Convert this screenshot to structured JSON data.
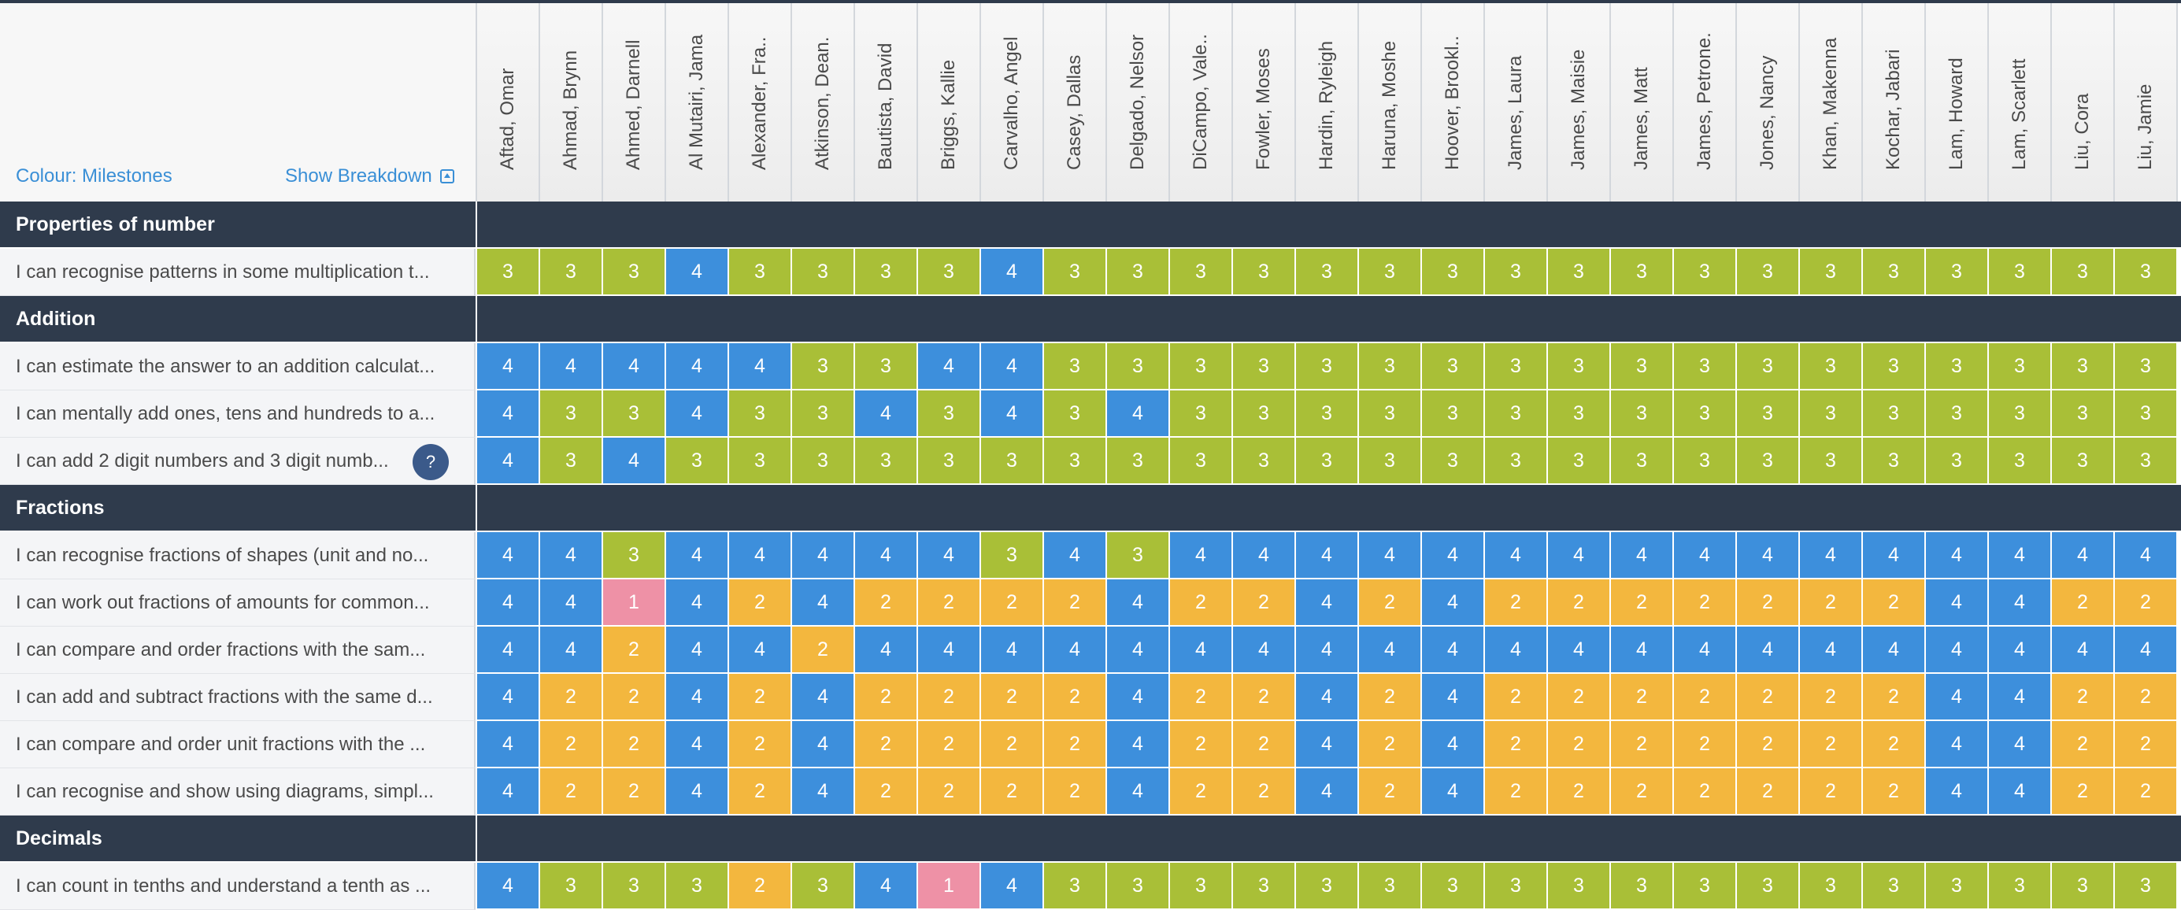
{
  "header": {
    "colour_toggle": "Colour: Milestones",
    "breakdown_toggle": "Show Breakdown"
  },
  "colors": {
    "1": "#ee91a6",
    "2": "#f3b73e",
    "3": "#a9bf37",
    "4": "#3d8fdc"
  },
  "students": [
    "Aftad, Omar",
    "Ahmad, Brynn",
    "Ahmed, Darnell",
    "Al Mutairi, Jama",
    "Alexander, Fra..",
    "Atkinson, Dean.",
    "Bautista, David",
    "Briggs, Kallie",
    "Carvalho, Angel",
    "Casey, Dallas",
    "Delgado, Nelsor",
    "DiCampo, Vale..",
    "Fowler, Moses",
    "Hardin, Ryleigh",
    "Haruna, Moshe",
    "Hoover, Brookl..",
    "James, Laura",
    "James, Maisie",
    "James, Matt",
    "James, Petrone.",
    "Jones, Nancy",
    "Khan, Makenna",
    "Kochar, Jabari",
    "Lam, Howard",
    "Lam, Scarlett",
    "Liu, Cora",
    "Liu, Jamie"
  ],
  "sections": [
    {
      "title": "Properties of number",
      "items": [
        {
          "label": "I can recognise patterns in some multiplication t...",
          "values": [
            3,
            3,
            3,
            4,
            3,
            3,
            3,
            3,
            4,
            3,
            3,
            3,
            3,
            3,
            3,
            3,
            3,
            3,
            3,
            3,
            3,
            3,
            3,
            3,
            3,
            3,
            3
          ]
        }
      ]
    },
    {
      "title": "Addition",
      "items": [
        {
          "label": "I can estimate the answer to an addition calculat...",
          "values": [
            4,
            4,
            4,
            4,
            4,
            3,
            3,
            4,
            4,
            3,
            3,
            3,
            3,
            3,
            3,
            3,
            3,
            3,
            3,
            3,
            3,
            3,
            3,
            3,
            3,
            3,
            3
          ]
        },
        {
          "label": "I can mentally add ones, tens and hundreds to a...",
          "values": [
            4,
            3,
            3,
            4,
            3,
            3,
            4,
            3,
            4,
            3,
            4,
            3,
            3,
            3,
            3,
            3,
            3,
            3,
            3,
            3,
            3,
            3,
            3,
            3,
            3,
            3,
            3
          ]
        },
        {
          "label": "I can add 2 digit numbers and 3 digit numb...",
          "values": [
            4,
            3,
            4,
            3,
            3,
            3,
            3,
            3,
            3,
            3,
            3,
            3,
            3,
            3,
            3,
            3,
            3,
            3,
            3,
            3,
            3,
            3,
            3,
            3,
            3,
            3,
            3
          ],
          "badge": true
        }
      ]
    },
    {
      "title": "Fractions",
      "items": [
        {
          "label": "I can recognise fractions of shapes (unit and no...",
          "values": [
            4,
            4,
            3,
            4,
            4,
            4,
            4,
            4,
            3,
            4,
            3,
            4,
            4,
            4,
            4,
            4,
            4,
            4,
            4,
            4,
            4,
            4,
            4,
            4,
            4,
            4,
            4
          ]
        },
        {
          "label": "I can work out fractions of amounts for common...",
          "values": [
            4,
            4,
            1,
            4,
            2,
            4,
            2,
            2,
            2,
            2,
            4,
            2,
            2,
            4,
            2,
            4,
            2,
            2,
            2,
            2,
            2,
            2,
            2,
            4,
            4,
            2,
            2
          ]
        },
        {
          "label": "I can compare and order fractions with the sam...",
          "values": [
            4,
            4,
            2,
            4,
            4,
            2,
            4,
            4,
            4,
            4,
            4,
            4,
            4,
            4,
            4,
            4,
            4,
            4,
            4,
            4,
            4,
            4,
            4,
            4,
            4,
            4,
            4
          ]
        },
        {
          "label": "I can add and subtract fractions with the same d...",
          "values": [
            4,
            2,
            2,
            4,
            2,
            4,
            2,
            2,
            2,
            2,
            4,
            2,
            2,
            4,
            2,
            4,
            2,
            2,
            2,
            2,
            2,
            2,
            2,
            4,
            4,
            2,
            2
          ]
        },
        {
          "label": "I can compare and order unit fractions with the ...",
          "values": [
            4,
            2,
            2,
            4,
            2,
            4,
            2,
            2,
            2,
            2,
            4,
            2,
            2,
            4,
            2,
            4,
            2,
            2,
            2,
            2,
            2,
            2,
            2,
            4,
            4,
            2,
            2
          ]
        },
        {
          "label": "I can recognise and show using diagrams, simpl...",
          "values": [
            4,
            2,
            2,
            4,
            2,
            4,
            2,
            2,
            2,
            2,
            4,
            2,
            2,
            4,
            2,
            4,
            2,
            2,
            2,
            2,
            2,
            2,
            2,
            4,
            4,
            2,
            2
          ]
        }
      ]
    },
    {
      "title": "Decimals",
      "items": [
        {
          "label": "I can count in tenths and understand a tenth as ...",
          "values": [
            4,
            3,
            3,
            3,
            2,
            3,
            4,
            1,
            4,
            3,
            3,
            3,
            3,
            3,
            3,
            3,
            3,
            3,
            3,
            3,
            3,
            3,
            3,
            3,
            3,
            3,
            3
          ]
        }
      ]
    }
  ]
}
